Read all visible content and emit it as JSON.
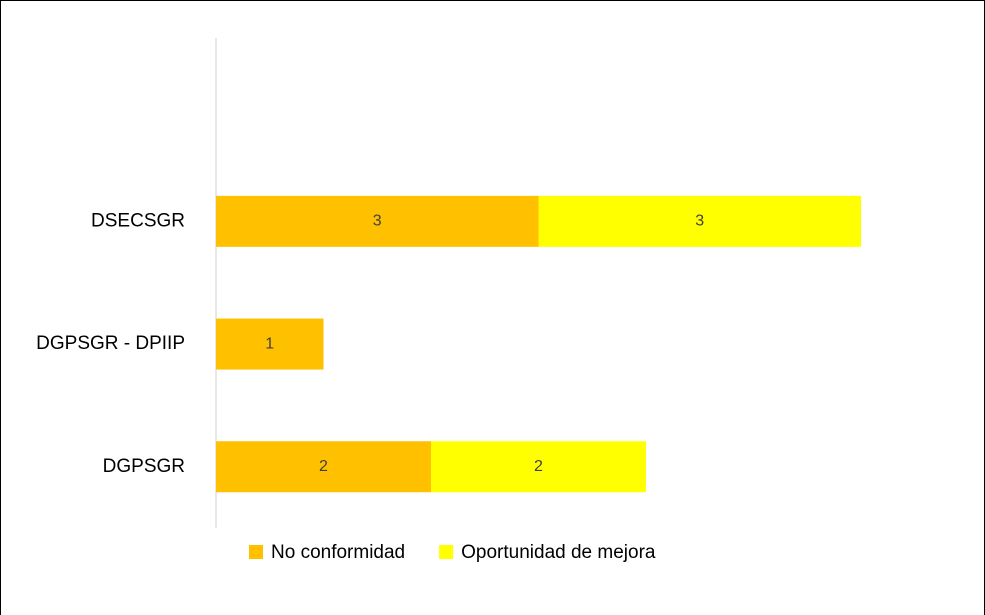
{
  "chart_data": {
    "type": "bar",
    "orientation": "horizontal",
    "stacked": true,
    "categories": [
      "DSECSGR",
      "DGPSGR - DPIIP",
      "DGPSGR"
    ],
    "series": [
      {
        "name": "No conformidad",
        "color": "#FFC000",
        "values": [
          3,
          1,
          2
        ]
      },
      {
        "name": "Oportunidad de mejora",
        "color": "#FFFF00",
        "values": [
          3,
          null,
          2
        ]
      }
    ],
    "legend": "bottom"
  }
}
